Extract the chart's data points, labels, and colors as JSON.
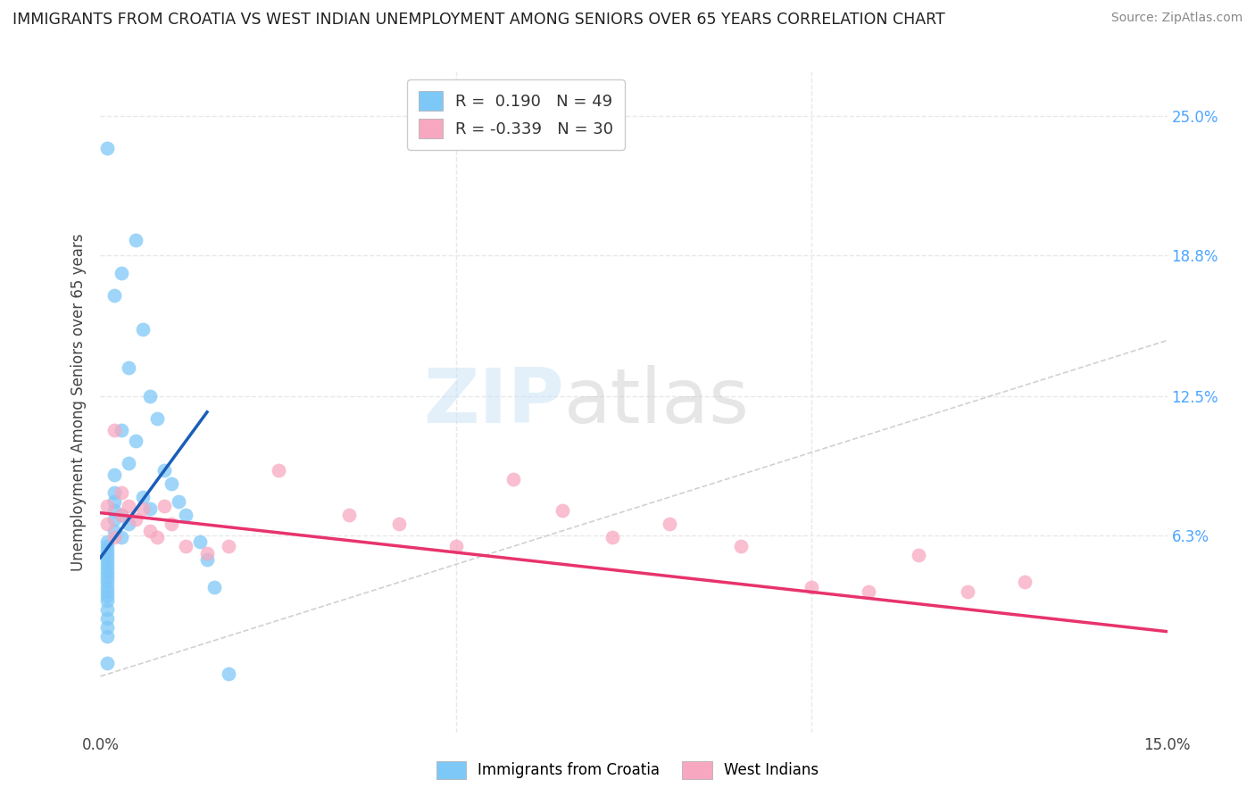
{
  "title": "IMMIGRANTS FROM CROATIA VS WEST INDIAN UNEMPLOYMENT AMONG SENIORS OVER 65 YEARS CORRELATION CHART",
  "source": "Source: ZipAtlas.com",
  "ylabel": "Unemployment Among Seniors over 65 years",
  "xlim": [
    0.0,
    0.15
  ],
  "ylim": [
    -0.025,
    0.27
  ],
  "yticks": [
    0.063,
    0.125,
    0.188,
    0.25
  ],
  "ytick_labels": [
    "6.3%",
    "12.5%",
    "18.8%",
    "25.0%"
  ],
  "xticks": [
    0.0,
    0.05,
    0.1,
    0.15
  ],
  "xtick_labels": [
    "0.0%",
    "",
    "",
    "15.0%"
  ],
  "croatia_R": 0.19,
  "croatia_N": 49,
  "westindian_R": -0.339,
  "westindian_N": 30,
  "croatia_color": "#7ec8f7",
  "westindian_color": "#f7a8c0",
  "croatia_line_color": "#1a5eb8",
  "westindian_line_color": "#e8336d",
  "diagonal_color": "#cccccc",
  "watermark_zip": "ZIP",
  "watermark_atlas": "atlas",
  "background_color": "#ffffff",
  "grid_color": "#e8e8e8",
  "croatia_x": [
    0.001,
    0.001,
    0.001,
    0.001,
    0.001,
    0.001,
    0.001,
    0.001,
    0.001,
    0.001,
    0.001,
    0.001,
    0.001,
    0.001,
    0.001,
    0.001,
    0.001,
    0.001,
    0.001,
    0.001,
    0.002,
    0.002,
    0.002,
    0.002,
    0.002,
    0.002,
    0.002,
    0.003,
    0.003,
    0.003,
    0.003,
    0.004,
    0.004,
    0.004,
    0.005,
    0.005,
    0.006,
    0.006,
    0.007,
    0.007,
    0.008,
    0.009,
    0.01,
    0.011,
    0.012,
    0.014,
    0.015,
    0.016,
    0.018
  ],
  "croatia_y": [
    0.236,
    0.06,
    0.058,
    0.056,
    0.054,
    0.052,
    0.05,
    0.048,
    0.046,
    0.044,
    0.042,
    0.04,
    0.038,
    0.036,
    0.034,
    0.03,
    0.026,
    0.022,
    0.018,
    0.006,
    0.17,
    0.09,
    0.082,
    0.078,
    0.074,
    0.07,
    0.065,
    0.18,
    0.11,
    0.072,
    0.062,
    0.138,
    0.095,
    0.068,
    0.195,
    0.105,
    0.155,
    0.08,
    0.125,
    0.075,
    0.115,
    0.092,
    0.086,
    0.078,
    0.072,
    0.06,
    0.052,
    0.04,
    0.001
  ],
  "westindian_x": [
    0.001,
    0.001,
    0.002,
    0.002,
    0.003,
    0.003,
    0.004,
    0.005,
    0.006,
    0.007,
    0.008,
    0.009,
    0.01,
    0.012,
    0.015,
    0.018,
    0.025,
    0.035,
    0.042,
    0.05,
    0.058,
    0.065,
    0.072,
    0.08,
    0.09,
    0.1,
    0.108,
    0.115,
    0.122,
    0.13
  ],
  "westindian_y": [
    0.076,
    0.068,
    0.11,
    0.062,
    0.082,
    0.072,
    0.076,
    0.07,
    0.075,
    0.065,
    0.062,
    0.076,
    0.068,
    0.058,
    0.055,
    0.058,
    0.092,
    0.072,
    0.068,
    0.058,
    0.088,
    0.074,
    0.062,
    0.068,
    0.058,
    0.04,
    0.038,
    0.054,
    0.038,
    0.042
  ],
  "croatia_line_x": [
    0.0,
    0.015
  ],
  "croatia_line_y": [
    0.053,
    0.118
  ],
  "westindian_line_x": [
    0.0,
    0.15
  ],
  "westindian_line_y": [
    0.073,
    0.02
  ]
}
